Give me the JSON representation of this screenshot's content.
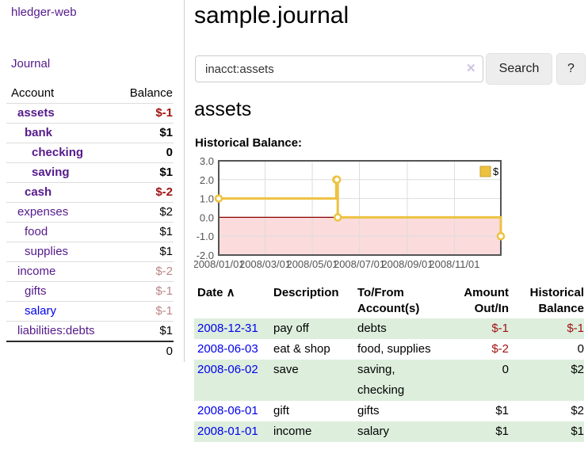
{
  "app": {
    "brand": "hledger-web",
    "nav_journal": "Journal"
  },
  "sidebar": {
    "headers": {
      "account": "Account",
      "balance": "Balance"
    },
    "rows": [
      {
        "account": "assets",
        "depth": 0,
        "bold": true,
        "balance": "$-1",
        "balance_class": "neg-strong"
      },
      {
        "account": "bank",
        "depth": 1,
        "bold": true,
        "balance": "$1",
        "balance_class": "bold"
      },
      {
        "account": "checking",
        "depth": 2,
        "bold": true,
        "balance": "0",
        "balance_class": "bold"
      },
      {
        "account": "saving",
        "depth": 2,
        "bold": true,
        "balance": "$1",
        "balance_class": "bold"
      },
      {
        "account": "cash",
        "depth": 1,
        "bold": true,
        "balance": "$-2",
        "balance_class": "neg-strong"
      },
      {
        "account": "expenses",
        "depth": 0,
        "bold": false,
        "balance": "$2",
        "balance_class": ""
      },
      {
        "account": "food",
        "depth": 1,
        "bold": false,
        "balance": "$1",
        "balance_class": ""
      },
      {
        "account": "supplies",
        "depth": 1,
        "bold": false,
        "balance": "$1",
        "balance_class": ""
      },
      {
        "account": "income",
        "depth": 0,
        "bold": false,
        "balance": "$-2",
        "balance_class": "neg-muted"
      },
      {
        "account": "gifts",
        "depth": 1,
        "bold": false,
        "balance": "$-1",
        "balance_class": "neg-muted"
      },
      {
        "account": "salary",
        "depth": 1,
        "bold": false,
        "blue": true,
        "balance": "$-1",
        "balance_class": "neg-muted"
      },
      {
        "account": "liabilities:debts",
        "depth": 0,
        "bold": false,
        "balance": "$1",
        "balance_class": ""
      }
    ],
    "total": "0"
  },
  "header": {
    "title": "sample.journal"
  },
  "search": {
    "value": "inacct:assets",
    "clear_icon": "✕",
    "search_button": "Search",
    "help_button": "?"
  },
  "account_page": {
    "heading": "assets",
    "chart_title": "Historical Balance:"
  },
  "chart_data": {
    "type": "line",
    "style": "step",
    "title": "Historical Balance",
    "series": [
      {
        "name": "$",
        "color": "#EDC240",
        "points": [
          {
            "date": "2008-01-01",
            "value": 1
          },
          {
            "date": "2008-06-01",
            "value": 2
          },
          {
            "date": "2008-06-02",
            "value": 2
          },
          {
            "date": "2008-06-03",
            "value": 0
          },
          {
            "date": "2008-12-31",
            "value": -1
          }
        ]
      }
    ],
    "x_range": [
      "2008-01-01",
      "2008-12-31"
    ],
    "x_ticks": [
      {
        "date": "2008-01-01",
        "label": "2008/01/01"
      },
      {
        "date": "2008-03-01",
        "label": "2008/03/01"
      },
      {
        "date": "2008-05-01",
        "label": "2008/05/01"
      },
      {
        "date": "2008-07-01",
        "label": "2008/07/01"
      },
      {
        "date": "2008-09-01",
        "label": "2008/09/01"
      },
      {
        "date": "2008-11-01",
        "label": "2008/11/01"
      }
    ],
    "ylim": [
      -2,
      3
    ],
    "y_ticks": [
      {
        "value": 3,
        "label": "3.0"
      },
      {
        "value": 2,
        "label": "2.0"
      },
      {
        "value": 1,
        "label": "1.0"
      },
      {
        "value": 0,
        "label": "0.0"
      },
      {
        "value": -1,
        "label": "-1.0"
      },
      {
        "value": -2,
        "label": "-2.0"
      }
    ],
    "legend": {
      "label": "$",
      "position": "top-right"
    },
    "grid": true,
    "colors": {
      "grid": "#dddddd",
      "border": "#545454",
      "negative_region": "#fbdbdb",
      "zero_line": "#8b0000",
      "axis_text": "#545454",
      "marker_fill": "#ffffff",
      "legend_border": "#c7a32d"
    }
  },
  "register": {
    "sort_icon": "∧",
    "headers": [
      {
        "label": "Date",
        "align": "left",
        "sortable": true
      },
      {
        "label": "Description",
        "align": "left"
      },
      {
        "label": "To/From Account(s)",
        "align": "left"
      },
      {
        "label": "Amount Out/In",
        "align": "right"
      },
      {
        "label": "Historical Balance",
        "align": "right"
      }
    ],
    "rows": [
      {
        "date": "2008-12-31",
        "description": "pay off",
        "accounts": "debts",
        "amount": "$-1",
        "amount_neg": true,
        "balance": "$-1",
        "balance_neg": true,
        "shaded": true
      },
      {
        "date": "2008-06-03",
        "description": "eat & shop",
        "accounts": "food, supplies",
        "amount": "$-2",
        "amount_neg": true,
        "balance": "0",
        "balance_neg": false,
        "shaded": false
      },
      {
        "date": "2008-06-02",
        "description": "save",
        "accounts": "saving, checking",
        "amount": "0",
        "amount_neg": false,
        "balance": "$2",
        "balance_neg": false,
        "shaded": true
      },
      {
        "date": "2008-06-01",
        "description": "gift",
        "accounts": "gifts",
        "amount": "$1",
        "amount_neg": false,
        "balance": "$2",
        "balance_neg": false,
        "shaded": false
      },
      {
        "date": "2008-01-01",
        "description": "income",
        "accounts": "salary",
        "amount": "$1",
        "amount_neg": false,
        "balance": "$1",
        "balance_neg": false,
        "shaded": true
      }
    ]
  }
}
